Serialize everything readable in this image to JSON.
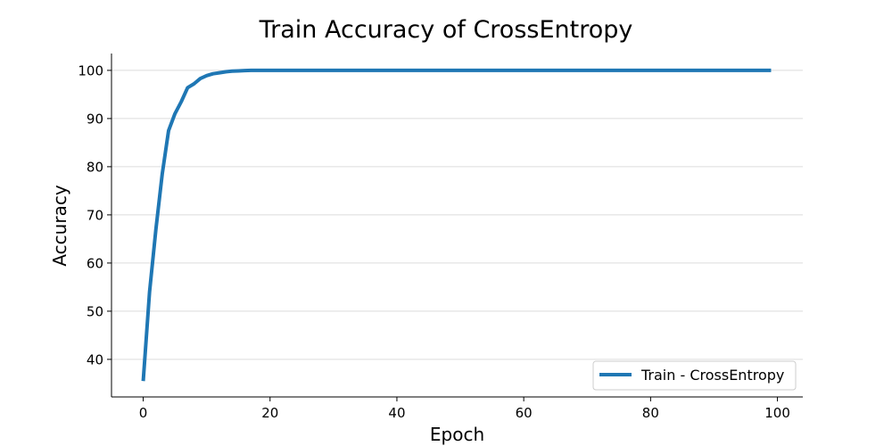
{
  "chart_data": {
    "type": "line",
    "title": "Train Accuracy of CrossEntropy",
    "xlabel": "Epoch",
    "ylabel": "Accuracy",
    "xlim": [
      -5,
      104
    ],
    "ylim": [
      32.2,
      103.5
    ],
    "xticks": [
      0,
      20,
      40,
      60,
      80,
      100
    ],
    "yticks": [
      40,
      50,
      60,
      70,
      80,
      90,
      100
    ],
    "grid": "y-major",
    "legend_position": "lower-right",
    "series": [
      {
        "name": "Train - CrossEntropy",
        "color": "#1f77b4",
        "x": [
          0,
          1,
          2,
          3,
          4,
          5,
          6,
          7,
          8,
          9,
          10,
          11,
          12,
          13,
          14,
          15,
          16,
          17,
          18,
          19,
          20,
          25,
          30,
          35,
          40,
          45,
          50,
          55,
          60,
          65,
          70,
          75,
          80,
          85,
          90,
          95,
          99
        ],
        "y": [
          35.5,
          54.0,
          67.0,
          78.5,
          87.5,
          91.0,
          93.5,
          96.4,
          97.2,
          98.3,
          98.9,
          99.3,
          99.5,
          99.7,
          99.85,
          99.9,
          99.95,
          100.0,
          100.0,
          100.0,
          100.0,
          100.0,
          100.0,
          100.0,
          100.0,
          100.0,
          100.0,
          100.0,
          100.0,
          100.0,
          100.0,
          100.0,
          100.0,
          100.0,
          100.0,
          100.0,
          100.0
        ]
      }
    ]
  }
}
